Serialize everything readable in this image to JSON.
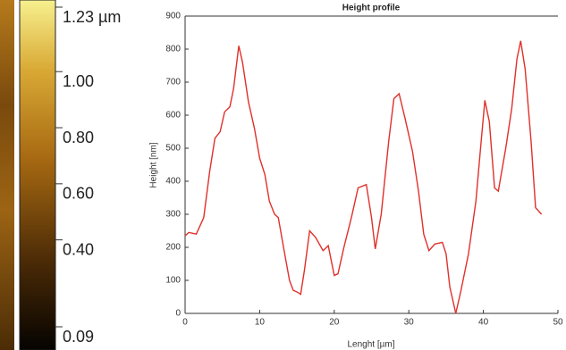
{
  "chart_data": [
    {
      "type": "colorbar",
      "lim": [
        0.09,
        1.23
      ],
      "ticks": [
        {
          "value": 1.23,
          "label": "1.23 µm"
        },
        {
          "value": 1.0,
          "label": "1.00"
        },
        {
          "value": 0.8,
          "label": "0.80"
        },
        {
          "value": 0.6,
          "label": "0.60"
        },
        {
          "value": 0.4,
          "label": "0.40"
        },
        0.09
      ]
    },
    {
      "type": "line",
      "title": "Height profile",
      "x_label": "Lenght [µm]",
      "y_label": "Height [nm]",
      "xlim": [
        0,
        50
      ],
      "ylim": [
        0,
        900
      ],
      "xticks": [
        0,
        10,
        20,
        30,
        40,
        50
      ],
      "yticks": [
        0,
        100,
        200,
        300,
        400,
        500,
        600,
        700,
        800,
        900
      ],
      "x": [
        0,
        0.5,
        1.5,
        2.5,
        3.3,
        4,
        4.7,
        5.3,
        6,
        6.5,
        7.2,
        7.7,
        8.5,
        9.3,
        10,
        10.7,
        11.3,
        12,
        12.5,
        13.2,
        14,
        14.5,
        15,
        15.5,
        16,
        16.7,
        17.5,
        18.5,
        19.2,
        20,
        20.5,
        21.3,
        22.3,
        23.2,
        24.3,
        25,
        25.5,
        26.3,
        27.3,
        28,
        28.7,
        29.5,
        30.5,
        31.3,
        32,
        32.7,
        33.5,
        34.5,
        35,
        35.5,
        36.3,
        37,
        38,
        39,
        39.7,
        40.2,
        40.8,
        41.5,
        42,
        43,
        43.8,
        44.5,
        45,
        45.6,
        46.4,
        47,
        47.8
      ],
      "series": [
        {
          "color": "#e0302a",
          "values": [
            235,
            245,
            240,
            290,
            430,
            530,
            550,
            610,
            625,
            680,
            810,
            760,
            640,
            560,
            470,
            420,
            340,
            300,
            290,
            200,
            100,
            70,
            65,
            58,
            130,
            250,
            230,
            190,
            205,
            115,
            120,
            200,
            290,
            380,
            390,
            290,
            195,
            300,
            520,
            650,
            665,
            590,
            490,
            370,
            240,
            190,
            210,
            215,
            180,
            80,
            0,
            70,
            180,
            340,
            520,
            645,
            580,
            380,
            370,
            500,
            620,
            770,
            825,
            740,
            520,
            320,
            300
          ]
        }
      ]
    }
  ]
}
